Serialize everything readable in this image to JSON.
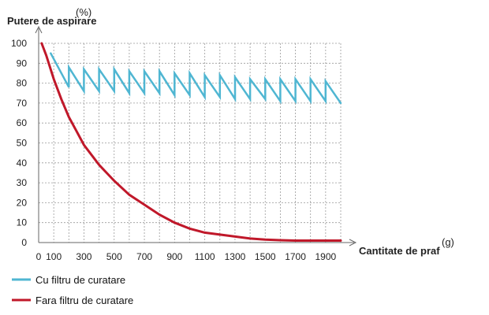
{
  "chart_data": {
    "type": "line",
    "ylabel": "Putere de aspirare",
    "ylabel_unit": "(%)",
    "xlabel": "Cantitate de praf",
    "xlabel_unit": "(g)",
    "xlim": [
      0,
      2000
    ],
    "ylim": [
      0,
      100
    ],
    "grid": true,
    "x_ticks": [
      0,
      100,
      300,
      500,
      700,
      900,
      1100,
      1300,
      1500,
      1700,
      1900
    ],
    "x_tick_labels": [
      "0",
      "100",
      "300",
      "500",
      "700",
      "900",
      "1100",
      "1300",
      "1500",
      "1700",
      "1900"
    ],
    "y_ticks": [
      0,
      10,
      20,
      30,
      40,
      50,
      60,
      70,
      80,
      90,
      100
    ],
    "y_tick_labels": [
      "0",
      "10",
      "20",
      "30",
      "40",
      "50",
      "60",
      "70",
      "80",
      "90",
      "100"
    ],
    "legend": {
      "placement": "bottom-left",
      "entries": [
        {
          "label": "Cu filtru de curatare",
          "color": "#4fb6d2"
        },
        {
          "label": "Fara filtru de curatare",
          "color": "#c0182a"
        }
      ]
    },
    "series": [
      {
        "name": "Cu filtru de curatare",
        "color": "#4fb6d2",
        "x": [
          80,
          200,
          200,
          300,
          300,
          400,
          400,
          500,
          500,
          600,
          600,
          700,
          700,
          800,
          800,
          900,
          900,
          1000,
          1000,
          1100,
          1100,
          1200,
          1200,
          1300,
          1300,
          1400,
          1400,
          1500,
          1500,
          1600,
          1600,
          1700,
          1700,
          1800,
          1800,
          1900,
          1900,
          2000
        ],
        "y": [
          95,
          78,
          88,
          76,
          87,
          76,
          87,
          76,
          87,
          75,
          86,
          75,
          86,
          75,
          86,
          74,
          85,
          74,
          85,
          73,
          84,
          73,
          84,
          72,
          83,
          72,
          82,
          72,
          82,
          71,
          82,
          71,
          82,
          71,
          82,
          71,
          81,
          70
        ]
      },
      {
        "name": "Fara filtru de curatare",
        "color": "#c0182a",
        "x": [
          20,
          50,
          100,
          150,
          200,
          250,
          300,
          400,
          500,
          600,
          700,
          800,
          900,
          1000,
          1100,
          1200,
          1300,
          1400,
          1500,
          1600,
          1700,
          1800,
          1900,
          2000
        ],
        "y": [
          100,
          94,
          82,
          72,
          63,
          56,
          49,
          39,
          31,
          24,
          19,
          14,
          10,
          7,
          5,
          4,
          3,
          2,
          1.5,
          1.2,
          1,
          1,
          1,
          1
        ]
      }
    ]
  }
}
